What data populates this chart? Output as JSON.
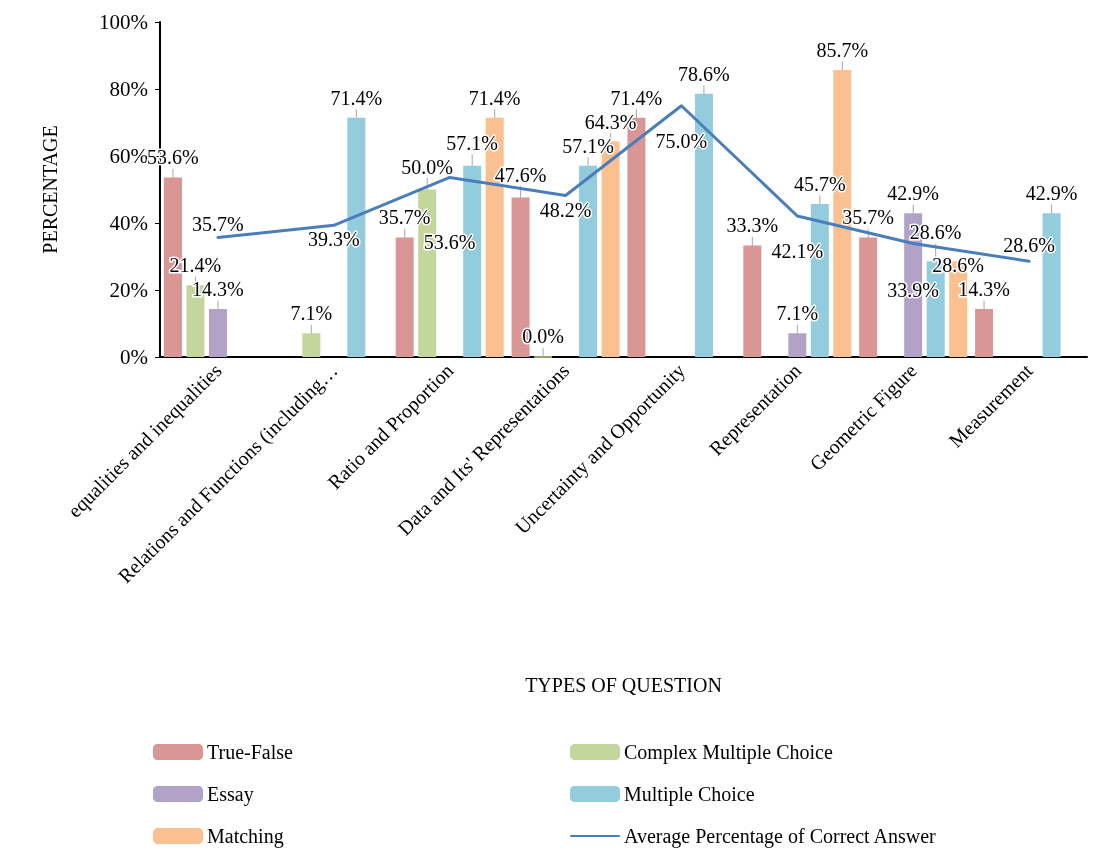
{
  "chart_data": {
    "type": "bar",
    "xlabel": "TYPES OF QUESTION",
    "ylabel": "PERCENTAGE",
    "categories": [
      "equalities and inequalities",
      "Relations and Functions (including…",
      "Ratio and Proportion",
      "Data and Its' Representations",
      "Uncertainty and Opportunity",
      "Representation",
      "Geometric Figure",
      "Measurement"
    ],
    "series": [
      {
        "name": "True-False",
        "color": "#d99694",
        "values": [
          53.6,
          null,
          35.7,
          47.6,
          71.4,
          33.3,
          35.7,
          14.3
        ],
        "value_labels": [
          "53.6%",
          null,
          "35.7%",
          "47.6%",
          "71.4%",
          "33.3%",
          "35.7%",
          "14.3%"
        ]
      },
      {
        "name": "Complex Multiple Choice",
        "color": "#c3d69b",
        "values": [
          21.4,
          7.1,
          50.0,
          0.0,
          null,
          null,
          null,
          null
        ],
        "value_labels": [
          "21.4%",
          "7.1%",
          "50.0%",
          "0.0%",
          null,
          null,
          null,
          null
        ]
      },
      {
        "name": "Essay",
        "color": "#b3a2c7",
        "values": [
          14.3,
          null,
          null,
          null,
          null,
          7.1,
          42.9,
          null
        ],
        "value_labels": [
          "14.3%",
          null,
          null,
          null,
          null,
          "7.1%",
          "42.9%",
          null
        ]
      },
      {
        "name": "Multiple Choice",
        "color": "#93cddd",
        "values": [
          null,
          71.4,
          57.1,
          57.1,
          78.6,
          45.7,
          28.6,
          42.9
        ],
        "value_labels": [
          null,
          "71.4%",
          "57.1%",
          "57.1%",
          "78.6%",
          "45.7%",
          "28.6%",
          "42.9%"
        ]
      },
      {
        "name": "Matching",
        "color": "#fac090",
        "values": [
          null,
          null,
          71.4,
          64.3,
          null,
          85.7,
          28.6,
          null
        ],
        "value_labels": [
          null,
          null,
          "71.4%",
          "64.3%",
          null,
          "85.7%",
          "28.6%",
          null
        ]
      },
      {
        "name": "Average Percentage of Correct Answer",
        "type": "line",
        "color": "#4a7ebb",
        "values": [
          35.7,
          39.3,
          53.6,
          48.2,
          75.0,
          42.1,
          33.9,
          28.6
        ],
        "value_labels": [
          "35.7%",
          "39.3%",
          "53.6%",
          "48.2%",
          "75.0%",
          "42.1%",
          "33.9%",
          "28.6%"
        ]
      }
    ],
    "ylim": [
      0,
      100
    ],
    "yticks": [
      {
        "value": 0,
        "label": "0%"
      },
      {
        "value": 20,
        "label": "20%"
      },
      {
        "value": 40,
        "label": "40%"
      },
      {
        "value": 60,
        "label": "60%"
      },
      {
        "value": 80,
        "label": "80%"
      },
      {
        "value": 100,
        "label": "100%"
      }
    ],
    "grid": false,
    "legend": "bottom",
    "marker": "none",
    "line_style": "solid"
  }
}
